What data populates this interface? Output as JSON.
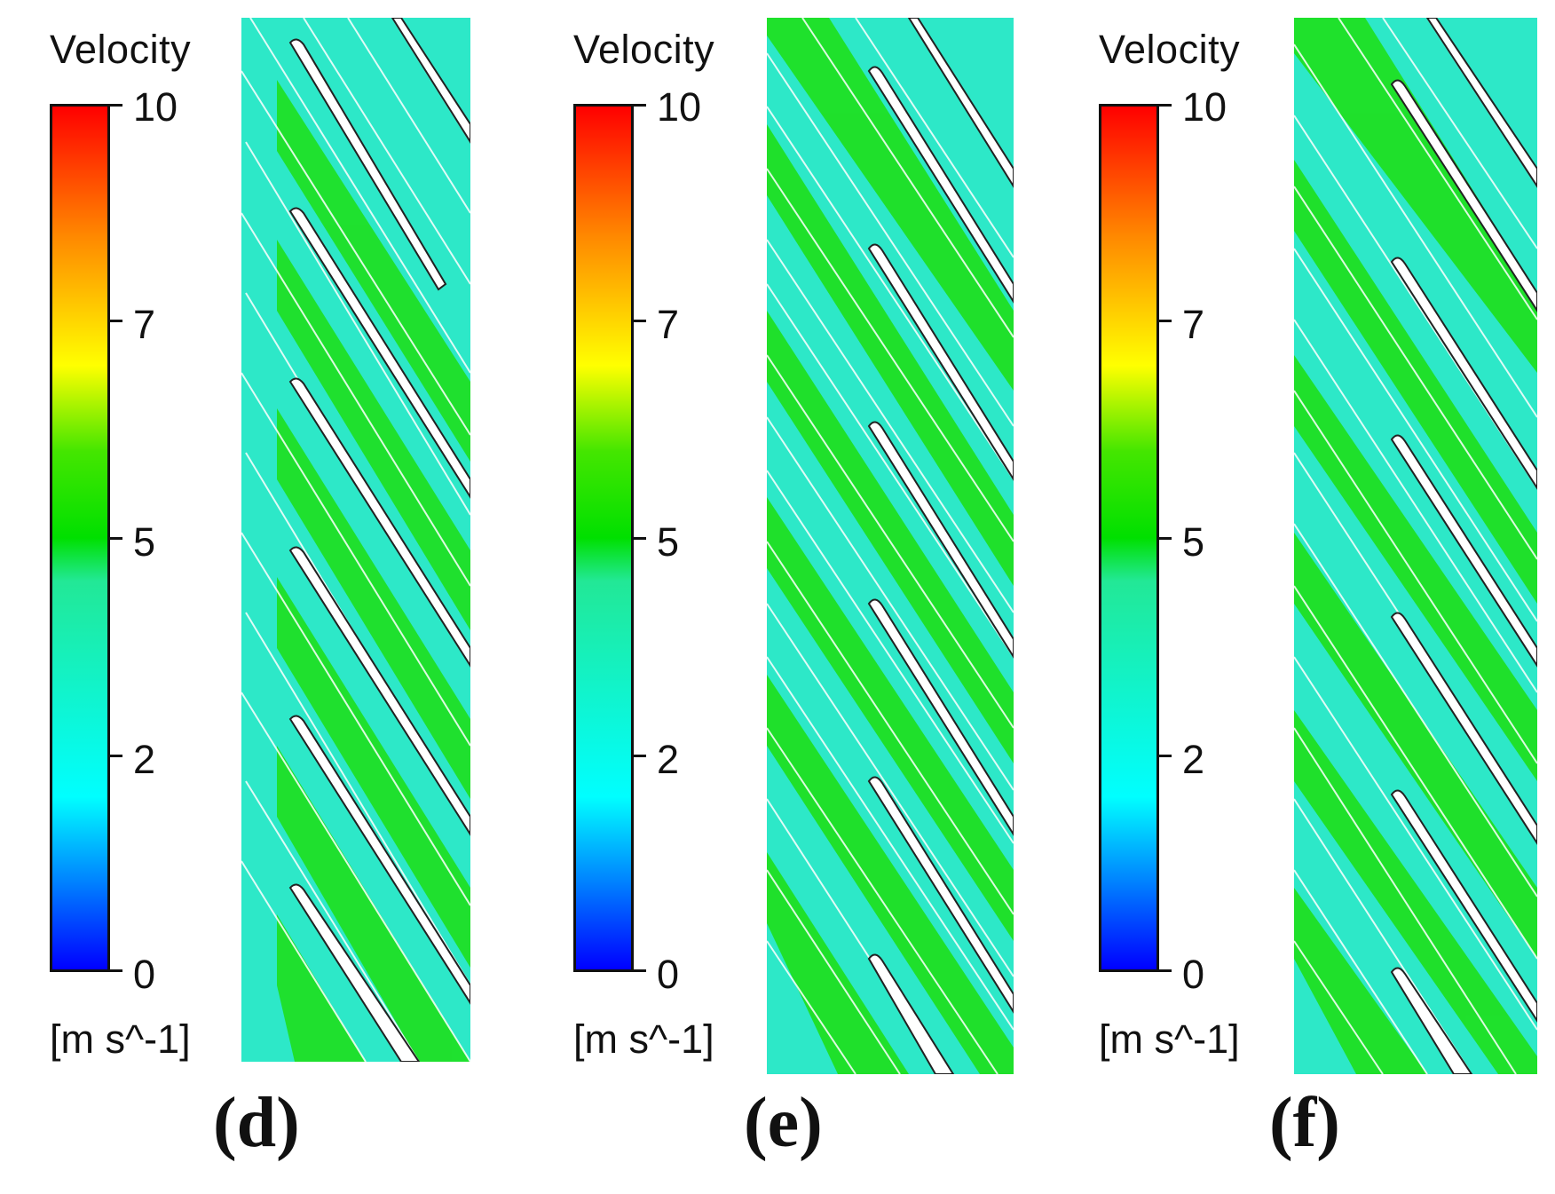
{
  "colorbar": {
    "title": "Velocity",
    "units": "[m s^-1]",
    "ticks": [
      {
        "value": 10,
        "label": "10"
      },
      {
        "value": 7,
        "label": "7"
      },
      {
        "value": 5,
        "label": "5"
      },
      {
        "value": 2,
        "label": "2"
      },
      {
        "value": 0,
        "label": "0"
      }
    ],
    "range": [
      0,
      10
    ],
    "gradient_stops": [
      {
        "value": 10,
        "color": "#ff0000"
      },
      {
        "value": 8.5,
        "color": "#ff8800"
      },
      {
        "value": 7,
        "color": "#ffff00"
      },
      {
        "value": 6,
        "color": "#44e600"
      },
      {
        "value": 5,
        "color": "#00e000"
      },
      {
        "value": 4.5,
        "color": "#22e896"
      },
      {
        "value": 2,
        "color": "#00ffff"
      },
      {
        "value": 1,
        "color": "#0080ff"
      },
      {
        "value": 0,
        "color": "#0000ff"
      }
    ]
  },
  "panels": [
    {
      "label": "(d)"
    },
    {
      "label": "(e)"
    },
    {
      "label": "(f)"
    }
  ],
  "colors": {
    "cyan_flow": "#2de8c8",
    "green_flow": "#1ee01e",
    "blade_outline": "#222222",
    "streamline": "#ffffff"
  }
}
